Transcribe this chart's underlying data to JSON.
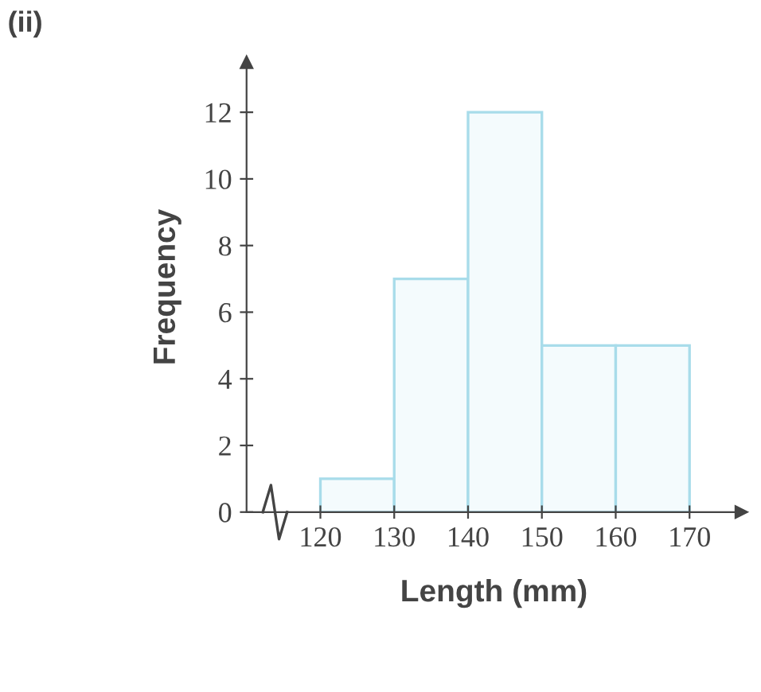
{
  "chart_data": {
    "type": "histogram",
    "title": "(ii)",
    "xlabel": "Length (mm)",
    "ylabel": "Frequency",
    "bins": [
      120,
      130,
      140,
      150,
      160,
      170
    ],
    "values": [
      1,
      7,
      12,
      5,
      5
    ],
    "color": "#a8dcea",
    "xlim": [
      110,
      177
    ],
    "ylim": [
      0,
      13.5
    ],
    "xticks": [
      120,
      130,
      140,
      150,
      160,
      170
    ],
    "yticks": [
      0,
      2,
      4,
      6,
      8,
      10,
      12
    ],
    "grid": false
  }
}
